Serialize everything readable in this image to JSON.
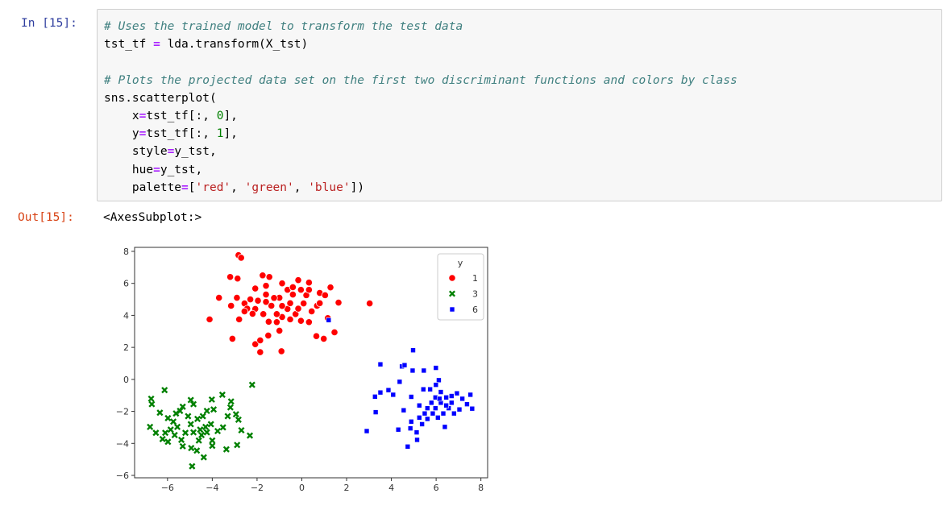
{
  "cell": {
    "in_prompt": "In [15]:",
    "out_prompt": "Out[15]:",
    "code_lines": [
      [
        [
          "c",
          "# Uses the trained model to transform the test data"
        ]
      ],
      [
        [
          "t",
          "tst_tf "
        ],
        [
          "o",
          "="
        ],
        [
          "t",
          " lda.transform(X_tst)"
        ]
      ],
      [],
      [
        [
          "c",
          "# Plots the projected data set on the first two discriminant functions and colors by class"
        ]
      ],
      [
        [
          "t",
          "sns.scatterplot("
        ]
      ],
      [
        [
          "t",
          "    x"
        ],
        [
          "o",
          "="
        ],
        [
          "t",
          "tst_tf[:, "
        ],
        [
          "n",
          "0"
        ],
        [
          "t",
          "],"
        ]
      ],
      [
        [
          "t",
          "    y"
        ],
        [
          "o",
          "="
        ],
        [
          "t",
          "tst_tf[:, "
        ],
        [
          "n",
          "1"
        ],
        [
          "t",
          "],"
        ]
      ],
      [
        [
          "t",
          "    style"
        ],
        [
          "o",
          "="
        ],
        [
          "t",
          "y_tst,"
        ]
      ],
      [
        [
          "t",
          "    hue"
        ],
        [
          "o",
          "="
        ],
        [
          "t",
          "y_tst,"
        ]
      ],
      [
        [
          "t",
          "    palette"
        ],
        [
          "o",
          "="
        ],
        [
          "t",
          "["
        ],
        [
          "s",
          "'red'"
        ],
        [
          "t",
          ", "
        ],
        [
          "s",
          "'green'"
        ],
        [
          "t",
          ", "
        ],
        [
          "s",
          "'blue'"
        ],
        [
          "t",
          "])"
        ]
      ]
    ],
    "output_text": "<AxesSubplot:>"
  },
  "chart_data": {
    "type": "scatter",
    "title": "",
    "xlabel": "",
    "ylabel": "",
    "xlim": [
      -7.47,
      8.3
    ],
    "ylim": [
      -6.15,
      8.25
    ],
    "xticks": [
      -6,
      -4,
      -2,
      0,
      2,
      4,
      6,
      8
    ],
    "yticks": [
      -6,
      -4,
      -2,
      0,
      2,
      4,
      6,
      8
    ],
    "grid": false,
    "legend": {
      "title": "y",
      "placement": "top-right"
    },
    "series": [
      {
        "name": "1",
        "color": "#ff0000",
        "marker": "circle",
        "points": [
          [
            -2.83,
            7.76
          ],
          [
            -2.71,
            7.6
          ],
          [
            -3.2,
            6.4
          ],
          [
            -2.87,
            6.3
          ],
          [
            -1.75,
            6.5
          ],
          [
            -1.45,
            6.4
          ],
          [
            -0.88,
            6.0
          ],
          [
            -0.16,
            6.2
          ],
          [
            0.32,
            6.05
          ],
          [
            0.8,
            5.4
          ],
          [
            1.28,
            5.75
          ],
          [
            -3.7,
            5.1
          ],
          [
            -2.9,
            5.1
          ],
          [
            -2.3,
            5.0
          ],
          [
            -1.6,
            5.3
          ],
          [
            -1.0,
            5.1
          ],
          [
            -0.4,
            5.3
          ],
          [
            0.08,
            4.75
          ],
          [
            -3.16,
            4.6
          ],
          [
            -2.56,
            4.75
          ],
          [
            -2.08,
            4.4
          ],
          [
            -1.36,
            4.6
          ],
          [
            -0.64,
            4.4
          ],
          [
            0.68,
            4.6
          ],
          [
            1.64,
            4.8
          ],
          [
            3.03,
            4.75
          ],
          [
            -4.12,
            3.75
          ],
          [
            -2.8,
            3.75
          ],
          [
            -2.2,
            4.1
          ],
          [
            -1.48,
            3.6
          ],
          [
            -0.88,
            3.9
          ],
          [
            -0.04,
            3.66
          ],
          [
            1.16,
            3.83
          ],
          [
            -3.1,
            2.54
          ],
          [
            -2.08,
            2.2
          ],
          [
            -1.86,
            2.44
          ],
          [
            -1.5,
            2.74
          ],
          [
            -1.0,
            3.04
          ],
          [
            0.65,
            2.7
          ],
          [
            0.98,
            2.54
          ],
          [
            1.46,
            2.94
          ],
          [
            -1.86,
            1.7
          ],
          [
            -0.91,
            1.76
          ],
          [
            -2.44,
            4.42
          ],
          [
            -1.96,
            4.92
          ],
          [
            -1.72,
            4.08
          ],
          [
            -1.24,
            5.09
          ],
          [
            -1.12,
            4.08
          ],
          [
            -0.52,
            4.76
          ],
          [
            -0.28,
            4.08
          ],
          [
            0.2,
            5.26
          ],
          [
            0.44,
            4.25
          ],
          [
            -0.64,
            5.6
          ],
          [
            -2.08,
            5.68
          ],
          [
            -1.6,
            5.85
          ],
          [
            -0.4,
            5.76
          ],
          [
            -0.04,
            5.6
          ],
          [
            0.32,
            5.6
          ],
          [
            -2.56,
            4.25
          ],
          [
            -1.12,
            3.58
          ],
          [
            -0.52,
            3.75
          ],
          [
            0.32,
            3.58
          ],
          [
            0.8,
            4.76
          ],
          [
            1.04,
            5.26
          ],
          [
            -0.16,
            4.42
          ],
          [
            -1.6,
            4.84
          ],
          [
            -0.88,
            4.59
          ]
        ]
      },
      {
        "name": "3",
        "color": "#008000",
        "marker": "x",
        "points": [
          [
            -6.73,
            -1.21
          ],
          [
            -6.7,
            -1.55
          ],
          [
            -6.13,
            -0.67
          ],
          [
            -2.22,
            -0.34
          ],
          [
            -6.34,
            -2.08
          ],
          [
            -5.98,
            -2.42
          ],
          [
            -6.78,
            -2.97
          ],
          [
            -6.52,
            -3.34
          ],
          [
            -6.22,
            -3.73
          ],
          [
            -5.98,
            -3.9
          ],
          [
            -5.68,
            -3.48
          ],
          [
            -5.62,
            -2.13
          ],
          [
            -5.32,
            -1.71
          ],
          [
            -4.96,
            -1.29
          ],
          [
            -4.84,
            -1.55
          ],
          [
            -4.02,
            -1.26
          ],
          [
            -3.55,
            -0.96
          ],
          [
            -3.16,
            -1.38
          ],
          [
            -3.19,
            -1.75
          ],
          [
            -2.94,
            -2.18
          ],
          [
            -2.83,
            -2.52
          ],
          [
            -2.7,
            -3.18
          ],
          [
            -2.32,
            -3.51
          ],
          [
            -2.89,
            -4.1
          ],
          [
            -3.37,
            -4.37
          ],
          [
            -3.52,
            -3.0
          ],
          [
            -3.31,
            -2.3
          ],
          [
            -4.0,
            -4.15
          ],
          [
            -4.38,
            -4.87
          ],
          [
            -4.9,
            -5.43
          ],
          [
            -4.69,
            -4.45
          ],
          [
            -4.94,
            -4.29
          ],
          [
            -5.32,
            -4.18
          ],
          [
            -5.38,
            -3.78
          ],
          [
            -5.2,
            -3.34
          ],
          [
            -5.56,
            -2.97
          ],
          [
            -5.86,
            -3.14
          ],
          [
            -4.96,
            -2.8
          ],
          [
            -4.66,
            -2.47
          ],
          [
            -4.42,
            -2.3
          ],
          [
            -4.24,
            -1.97
          ],
          [
            -3.94,
            -1.88
          ],
          [
            -4.84,
            -3.31
          ],
          [
            -4.54,
            -3.14
          ],
          [
            -4.3,
            -2.97
          ],
          [
            -4.06,
            -2.8
          ],
          [
            -4.48,
            -3.48
          ],
          [
            -4.24,
            -3.31
          ],
          [
            -4.0,
            -3.82
          ],
          [
            -3.76,
            -3.23
          ],
          [
            -5.08,
            -2.3
          ],
          [
            -5.44,
            -1.97
          ],
          [
            -5.74,
            -2.64
          ],
          [
            -6.1,
            -3.34
          ],
          [
            -4.6,
            -3.82
          ]
        ]
      },
      {
        "name": "6",
        "color": "#0000ff",
        "marker": "square",
        "points": [
          [
            4.97,
            1.82
          ],
          [
            3.51,
            0.94
          ],
          [
            4.47,
            0.81
          ],
          [
            4.59,
            0.89
          ],
          [
            4.95,
            0.55
          ],
          [
            5.45,
            0.55
          ],
          [
            5.99,
            0.72
          ],
          [
            6.12,
            -0.05
          ],
          [
            5.99,
            -0.34
          ],
          [
            4.37,
            -0.15
          ],
          [
            3.27,
            -1.08
          ],
          [
            3.51,
            -0.82
          ],
          [
            3.87,
            -0.67
          ],
          [
            4.08,
            -0.96
          ],
          [
            3.3,
            -2.05
          ],
          [
            4.55,
            -1.93
          ],
          [
            4.89,
            -1.09
          ],
          [
            2.9,
            -3.23
          ],
          [
            4.31,
            -3.14
          ],
          [
            4.73,
            -4.2
          ],
          [
            5.15,
            -3.78
          ],
          [
            4.85,
            -3.06
          ],
          [
            4.89,
            -2.64
          ],
          [
            5.25,
            -2.39
          ],
          [
            5.49,
            -2.13
          ],
          [
            5.61,
            -1.8
          ],
          [
            5.79,
            -1.46
          ],
          [
            5.97,
            -1.13
          ],
          [
            6.21,
            -0.79
          ],
          [
            6.45,
            -1.13
          ],
          [
            6.69,
            -1.46
          ],
          [
            6.93,
            -0.87
          ],
          [
            7.17,
            -1.21
          ],
          [
            7.53,
            -0.96
          ],
          [
            7.61,
            -1.83
          ],
          [
            7.38,
            -1.55
          ],
          [
            7.04,
            -1.88
          ],
          [
            6.8,
            -2.13
          ],
          [
            6.56,
            -1.8
          ],
          [
            6.32,
            -2.13
          ],
          [
            6.08,
            -2.39
          ],
          [
            5.85,
            -2.13
          ],
          [
            5.61,
            -2.47
          ],
          [
            5.37,
            -2.8
          ],
          [
            5.13,
            -3.31
          ],
          [
            6.39,
            -2.97
          ],
          [
            5.97,
            -1.8
          ],
          [
            6.21,
            -1.46
          ],
          [
            5.73,
            -0.62
          ],
          [
            5.43,
            -0.62
          ],
          [
            5.25,
            -1.63
          ],
          [
            6.45,
            -1.63
          ],
          [
            6.69,
            -1.04
          ],
          [
            6.15,
            -1.21
          ],
          [
            1.2,
            3.7
          ]
        ]
      }
    ]
  }
}
